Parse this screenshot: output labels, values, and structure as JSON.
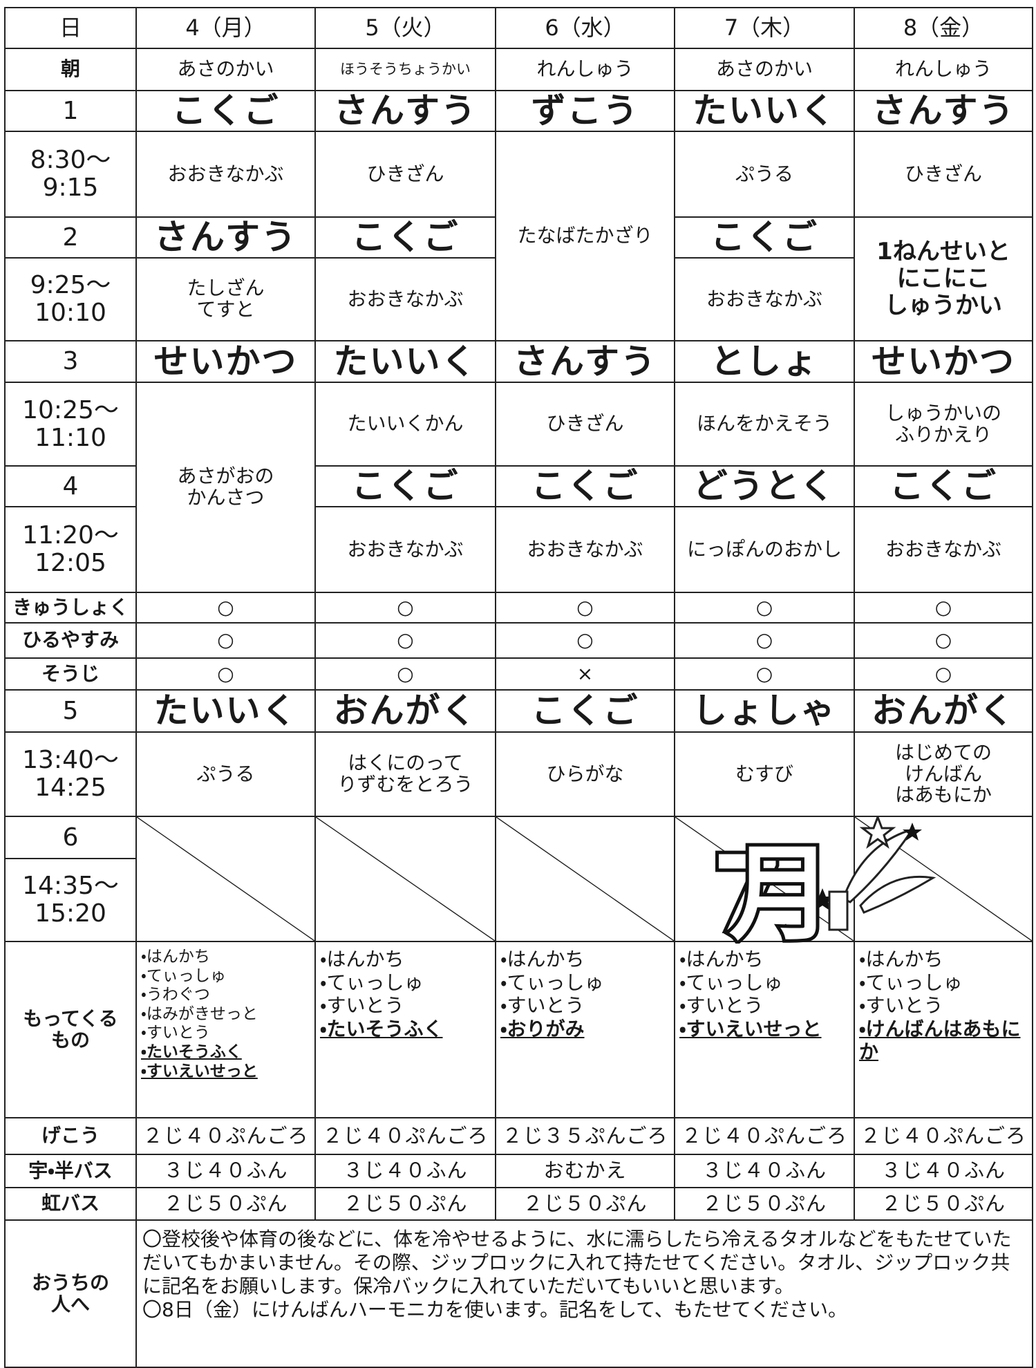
{
  "header": {
    "corner": "日",
    "days": [
      "4（月）",
      "5（火）",
      "6（水）",
      "7（木）",
      "8（金）"
    ]
  },
  "rows": [
    {
      "label": "朝",
      "cells": [
        "あさのかい",
        "ほうそうちょうかい",
        "れんしゅう",
        "あさのかい",
        "れんしゅう"
      ]
    },
    {
      "label": "1",
      "cells": [
        "こくご",
        "さんすう",
        "ずこう",
        "たいいく",
        "さんすう"
      ]
    },
    {
      "label": "8:30～\n9:15",
      "cells": [
        "おおきなかぶ",
        "ひきざん",
        "たなばたかざり",
        "ぷうる",
        "ひきざん"
      ]
    },
    {
      "label": "2",
      "cells": [
        "さんすう",
        "こくご",
        "こくご",
        "1ねんせいと\nにこにこ\nしゅうかい"
      ]
    },
    {
      "label": "9:25～\n10:10",
      "cells": [
        "たしざん\nてすと",
        "おおきなかぶ",
        "おおきなかぶ"
      ]
    },
    {
      "label": "3",
      "cells": [
        "せいかつ",
        "たいいく",
        "さんすう",
        "としょ",
        "せいかつ"
      ]
    },
    {
      "label": "10:25～\n11:10",
      "cells": [
        "あさがおの\nかんさつ",
        "たいいくかん",
        "ひきざん",
        "ほんをかえそう",
        "しゅうかいの\nふりかえり"
      ]
    },
    {
      "label": "4",
      "cells": [
        "こくご",
        "こくご",
        "どうとく",
        "こくご"
      ]
    },
    {
      "label": "11:20～\n12:05",
      "cells": [
        "おおきなかぶ",
        "おおきなかぶ",
        "にっぽんのおかし",
        "おおきなかぶ"
      ]
    },
    {
      "label": "きゅうしょく",
      "cells": [
        "○",
        "○",
        "○",
        "○",
        "○"
      ]
    },
    {
      "label": "ひるやすみ",
      "cells": [
        "○",
        "○",
        "○",
        "○",
        "○"
      ]
    },
    {
      "label": "そうじ",
      "cells": [
        "○",
        "○",
        "×",
        "○",
        "○"
      ]
    },
    {
      "label": "5",
      "cells": [
        "たいいく",
        "おんがく",
        "こくご",
        "しょしゃ",
        "おんがく"
      ]
    },
    {
      "label": "13:40～\n14:25",
      "cells": [
        "ぷうる",
        "はくにのって\nりずむをとろう",
        "ひらがな",
        "むすび",
        "はじめての\nけんばん\nはあもにか"
      ]
    },
    {
      "label": "6"
    },
    {
      "label": "14:35～\n15:20"
    },
    {
      "label": "げこう",
      "cells": [
        "２じ４０ぷんごろ",
        "２じ４０ぷんごろ",
        "２じ３５ぷんごろ",
        "２じ４０ぷんごろ",
        "２じ４０ぷんごろ"
      ]
    },
    {
      "label": "宇・半バス",
      "cells": [
        "３じ４０ふん",
        "３じ４０ふん",
        "おむかえ",
        "３じ４０ふん",
        "３じ４０ふん"
      ]
    },
    {
      "label": "虹バス",
      "cells": [
        "２じ５０ぷん",
        "２じ５０ぷん",
        "２じ５０ぷん",
        "２じ５０ぷん",
        "２じ５０ぷん"
      ]
    }
  ],
  "belongings": {
    "label": "もってくる\nもの",
    "cells": [
      {
        "items": [
          "・はんかち",
          "・てぃっしゅ",
          "・うわぐつ",
          "・はみがきせっと",
          "・すいとう"
        ],
        "new_items": [
          "・たいそうふく",
          "・すいえいせっと"
        ]
      },
      {
        "items": [
          "・はんかち",
          "・てぃっしゅ",
          "・すいとう"
        ],
        "new_items": [
          "・たいそうふく"
        ]
      },
      {
        "items": [
          "・はんかち",
          "・てぃっしゅ",
          "・すいとう"
        ],
        "new_items": [
          "・おりがみ"
        ]
      },
      {
        "items": [
          "・はんかち",
          "・てぃっしゅ",
          "・すいとう"
        ],
        "new_items": [
          "・すいえいせっと"
        ]
      },
      {
        "items": [
          "・はんかち",
          "・てぃっしゅ",
          "・すいとう"
        ],
        "new_items": [
          "・けんばんはあもにか"
        ]
      }
    ]
  },
  "notes": {
    "label": "おうちの\n人へ",
    "paragraphs": [
      "〇登校後や体育の後などに、体を冷やせるように、水に濡らしたら冷えるタオルなどをもたせていただいてもかまいません。その際、ジップロックに入れて持たせてください。タオル、ジップロック共に記名をお願いします。保冷バックに入れていただいてもいいと思います。",
      "〇8日（金）にけんばんハーモニカを使います。記名をして、もたせてください。"
    ]
  },
  "decoration": "7月"
}
